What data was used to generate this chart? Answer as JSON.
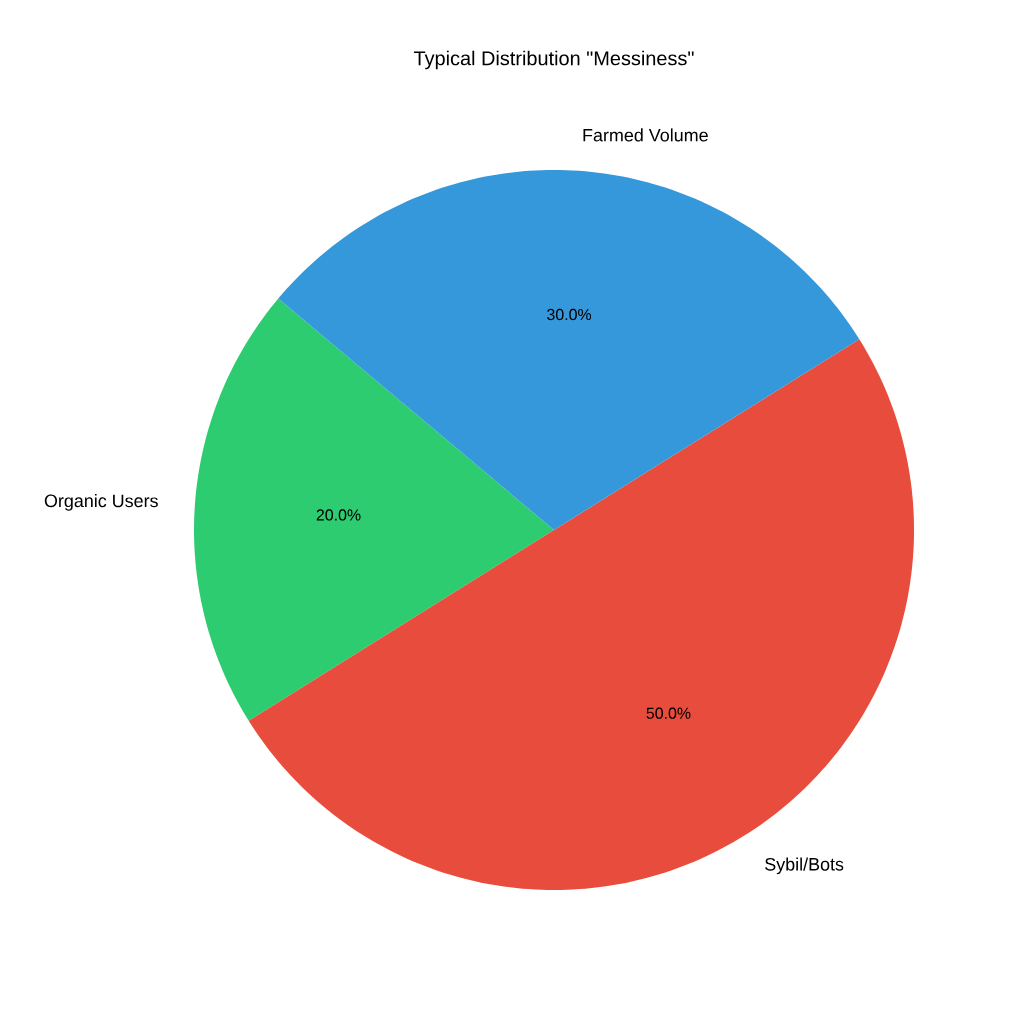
{
  "chart_data": {
    "type": "pie",
    "title": "Typical Distribution \"Messiness\"",
    "categories": [
      "Organic Users",
      "Sybil/Bots",
      "Farmed Volume"
    ],
    "values": [
      20,
      50,
      30
    ],
    "colors": [
      "#2ecc71",
      "#e74c3c",
      "#3498db"
    ],
    "value_labels": [
      "20.0%",
      "50.0%",
      "30.0%"
    ]
  }
}
